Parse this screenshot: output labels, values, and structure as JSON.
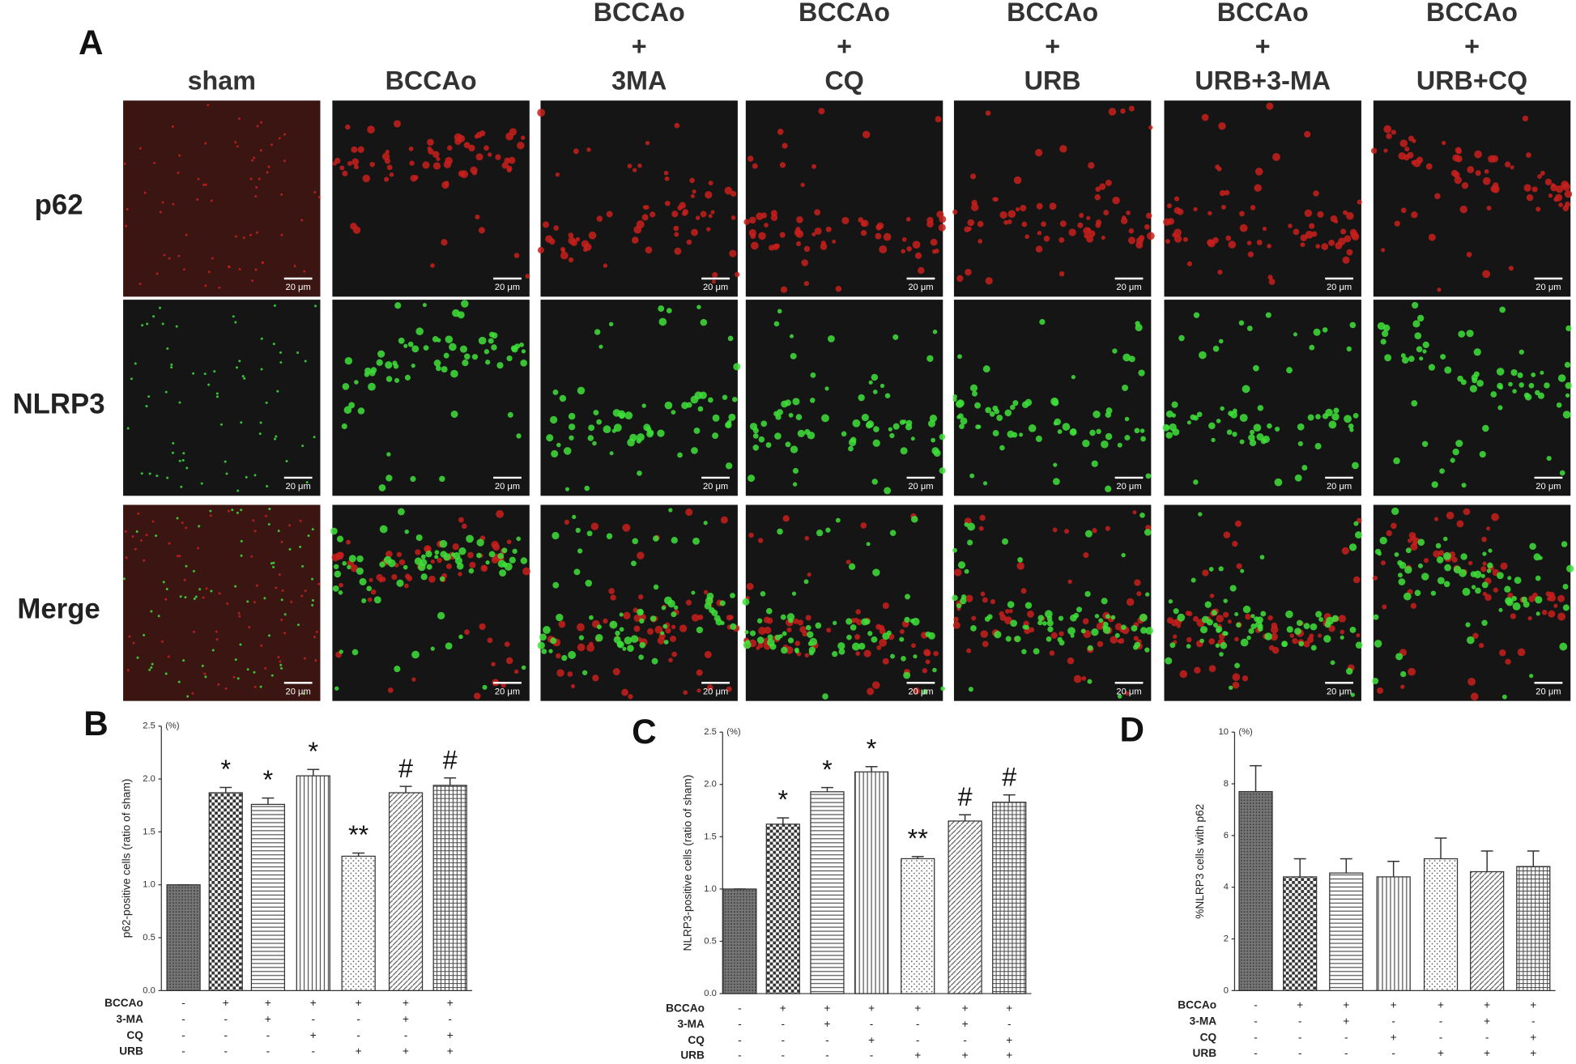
{
  "panel_a": {
    "label": "A",
    "columns": [
      {
        "lines": [
          "sham"
        ]
      },
      {
        "lines": [
          "BCCAo"
        ]
      },
      {
        "lines": [
          "BCCAo",
          "+",
          "3MA"
        ]
      },
      {
        "lines": [
          "BCCAo",
          "+",
          "CQ"
        ]
      },
      {
        "lines": [
          "BCCAo",
          "+",
          "URB"
        ]
      },
      {
        "lines": [
          "BCCAo",
          "+",
          "URB+3-MA"
        ]
      },
      {
        "lines": [
          "BCCAo",
          "+",
          "URB+CQ"
        ]
      }
    ],
    "rows": [
      "p62",
      "NLRP3",
      "Merge"
    ],
    "scale_bar": "20 μm"
  },
  "chart_data": [
    {
      "type": "bar",
      "panel_label": "B",
      "ylabel": "p62-positive cells (ratio of sham)",
      "unit": "(%)",
      "values": [
        1.0,
        1.87,
        1.76,
        2.03,
        1.27,
        1.87,
        1.94
      ],
      "errors": [
        0,
        0.05,
        0.06,
        0.06,
        0.03,
        0.06,
        0.07
      ],
      "annotations": [
        null,
        "*",
        "*",
        "*",
        "**",
        "#",
        "#"
      ],
      "ylim": [
        0,
        2.5
      ],
      "yticks": [
        {
          "value": 0,
          "label": "0.0"
        },
        0.5,
        {
          "value": 1,
          "label": "1.0"
        },
        1.5,
        {
          "value": 2,
          "label": "2.0"
        },
        2.5
      ],
      "conditions": [
        {
          "name": "BCCAo",
          "marks": [
            "-",
            "+",
            "+",
            "+",
            "+",
            "+",
            "+"
          ]
        },
        {
          "name": "3-MA",
          "marks": [
            "-",
            "-",
            "+",
            "-",
            "-",
            "+",
            "-"
          ]
        },
        {
          "name": "CQ",
          "marks": [
            "-",
            "-",
            "-",
            "+",
            "-",
            "-",
            "+"
          ]
        },
        {
          "name": "URB",
          "marks": [
            "-",
            "-",
            "-",
            "-",
            "+",
            "+",
            "+"
          ]
        }
      ]
    },
    {
      "type": "bar",
      "panel_label": "C",
      "ylabel": "NLRP3-positive cells (ratio of sham)",
      "unit": "(%)",
      "values": [
        1.0,
        1.62,
        1.93,
        2.12,
        1.29,
        1.65,
        1.83
      ],
      "errors": [
        0,
        0.06,
        0.04,
        0.05,
        0.02,
        0.06,
        0.07
      ],
      "annotations": [
        null,
        "*",
        "*",
        "*",
        "**",
        "#",
        "#"
      ],
      "ylim": [
        0,
        2.5
      ],
      "yticks": [
        {
          "value": 0,
          "label": "0.0"
        },
        0.5,
        {
          "value": 1,
          "label": "1.0"
        },
        1.5,
        {
          "value": 2,
          "label": "2.0"
        },
        2.5
      ],
      "conditions": [
        {
          "name": "BCCAo",
          "marks": [
            "-",
            "+",
            "+",
            "+",
            "+",
            "+",
            "+"
          ]
        },
        {
          "name": "3-MA",
          "marks": [
            "-",
            "-",
            "+",
            "-",
            "-",
            "+",
            "-"
          ]
        },
        {
          "name": "CQ",
          "marks": [
            "-",
            "-",
            "-",
            "+",
            "-",
            "-",
            "+"
          ]
        },
        {
          "name": "URB",
          "marks": [
            "-",
            "-",
            "-",
            "-",
            "+",
            "+",
            "+"
          ]
        }
      ]
    },
    {
      "type": "bar",
      "panel_label": "D",
      "ylabel": "%NLRP3 cells with p62",
      "unit": "(%)",
      "values": [
        7.7,
        4.4,
        4.55,
        4.4,
        5.1,
        4.6,
        4.8
      ],
      "errors": [
        1.0,
        0.7,
        0.55,
        0.6,
        0.8,
        0.8,
        0.6
      ],
      "ylim": [
        0,
        10
      ],
      "yticks": [
        0,
        2,
        4,
        6,
        8,
        10
      ],
      "conditions": [
        {
          "name": "BCCAo",
          "marks": [
            "-",
            "+",
            "+",
            "+",
            "+",
            "+",
            "+"
          ]
        },
        {
          "name": "3-MA",
          "marks": [
            "-",
            "-",
            "+",
            "-",
            "-",
            "+",
            "-"
          ]
        },
        {
          "name": "CQ",
          "marks": [
            "-",
            "-",
            "-",
            "+",
            "-",
            "-",
            "+"
          ]
        },
        {
          "name": "URB",
          "marks": [
            "-",
            "-",
            "-",
            "-",
            "+",
            "+",
            "+"
          ]
        }
      ]
    }
  ]
}
